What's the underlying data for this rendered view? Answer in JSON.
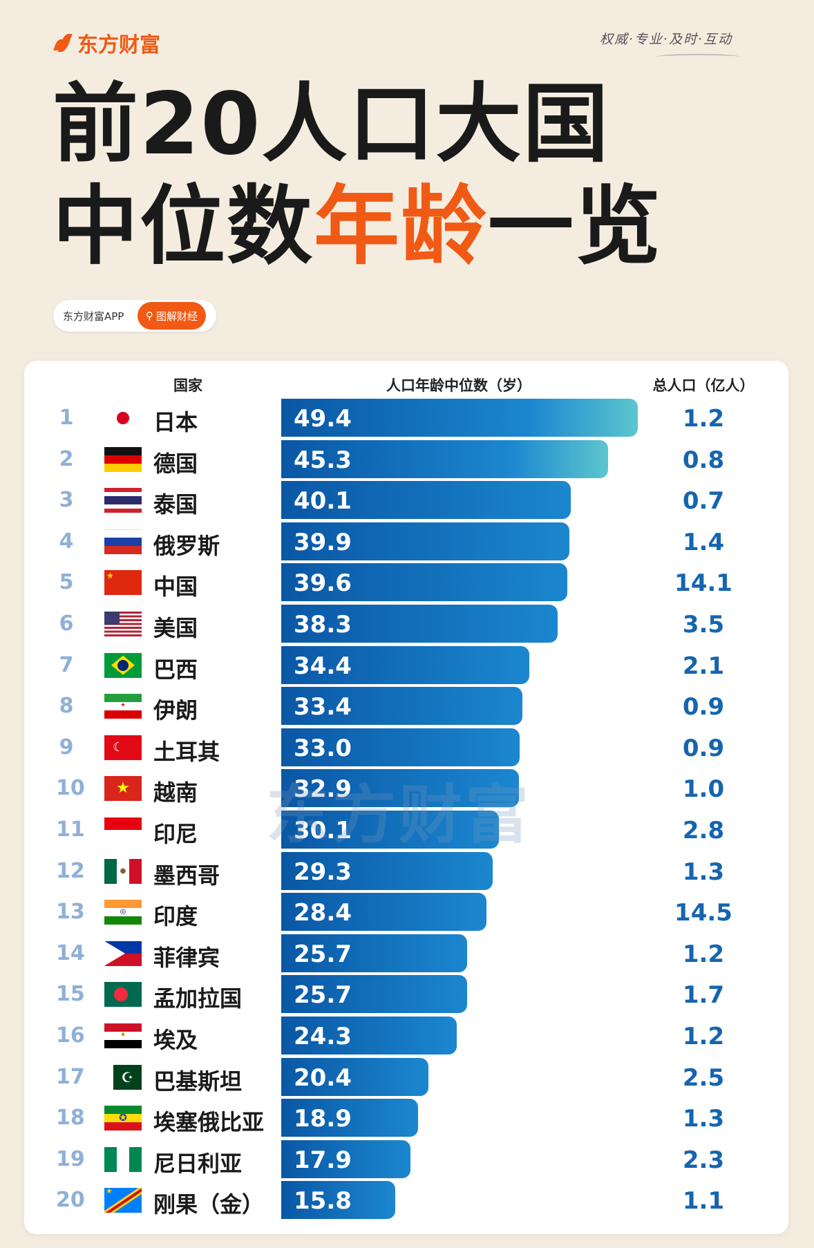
{
  "brand": {
    "logo_text": "东方财富",
    "slogan": "权威·专业·及时·互动"
  },
  "title": {
    "line1": "前20人口大国",
    "line2_a": "中位数",
    "line2_b": "年龄",
    "line2_c": "一览"
  },
  "pill": {
    "app": "东方财富APP",
    "button": "图解财经",
    "icon": "search-icon"
  },
  "watermark": "东方财富",
  "colors": {
    "accent": "#f05a14",
    "bar": "#0a57a5",
    "pop": "#1565b0",
    "rank": "#8fb0d8"
  },
  "chart_data": {
    "type": "table",
    "columns": [
      "国家",
      "人口年龄中位数（岁）",
      "总人口（亿人）"
    ],
    "rows": [
      {
        "rank": "1",
        "country": "日本",
        "flag": "jp",
        "median_age": 49.4,
        "population": "1.2"
      },
      {
        "rank": "2",
        "country": "德国",
        "flag": "de",
        "median_age": 45.3,
        "population": "0.8"
      },
      {
        "rank": "3",
        "country": "泰国",
        "flag": "th",
        "median_age": 40.1,
        "population": "0.7"
      },
      {
        "rank": "4",
        "country": "俄罗斯",
        "flag": "ru",
        "median_age": 39.9,
        "population": "1.4"
      },
      {
        "rank": "5",
        "country": "中国",
        "flag": "cn",
        "median_age": 39.6,
        "population": "14.1"
      },
      {
        "rank": "6",
        "country": "美国",
        "flag": "us",
        "median_age": 38.3,
        "population": "3.5"
      },
      {
        "rank": "7",
        "country": "巴西",
        "flag": "br",
        "median_age": 34.4,
        "population": "2.1"
      },
      {
        "rank": "8",
        "country": "伊朗",
        "flag": "ir",
        "median_age": 33.4,
        "population": "0.9"
      },
      {
        "rank": "9",
        "country": "土耳其",
        "flag": "tr",
        "median_age": 33.0,
        "population": "0.9"
      },
      {
        "rank": "10",
        "country": "越南",
        "flag": "vn",
        "median_age": 32.9,
        "population": "1.0"
      },
      {
        "rank": "11",
        "country": "印尼",
        "flag": "id",
        "median_age": 30.1,
        "population": "2.8"
      },
      {
        "rank": "12",
        "country": "墨西哥",
        "flag": "mx",
        "median_age": 29.3,
        "population": "1.3"
      },
      {
        "rank": "13",
        "country": "印度",
        "flag": "in",
        "median_age": 28.4,
        "population": "14.5"
      },
      {
        "rank": "14",
        "country": "菲律宾",
        "flag": "ph",
        "median_age": 25.7,
        "population": "1.2"
      },
      {
        "rank": "15",
        "country": "孟加拉国",
        "flag": "bd",
        "median_age": 25.7,
        "population": "1.7"
      },
      {
        "rank": "16",
        "country": "埃及",
        "flag": "eg",
        "median_age": 24.3,
        "population": "1.2"
      },
      {
        "rank": "17",
        "country": "巴基斯坦",
        "flag": "pk",
        "median_age": 20.4,
        "population": "2.5"
      },
      {
        "rank": "18",
        "country": "埃塞俄比亚",
        "flag": "et",
        "median_age": 18.9,
        "population": "1.3"
      },
      {
        "rank": "19",
        "country": "尼日利亚",
        "flag": "ng",
        "median_age": 17.9,
        "population": "2.3"
      },
      {
        "rank": "20",
        "country": "刚果（金）",
        "flag": "cd",
        "median_age": 15.8,
        "population": "1.1"
      }
    ]
  }
}
